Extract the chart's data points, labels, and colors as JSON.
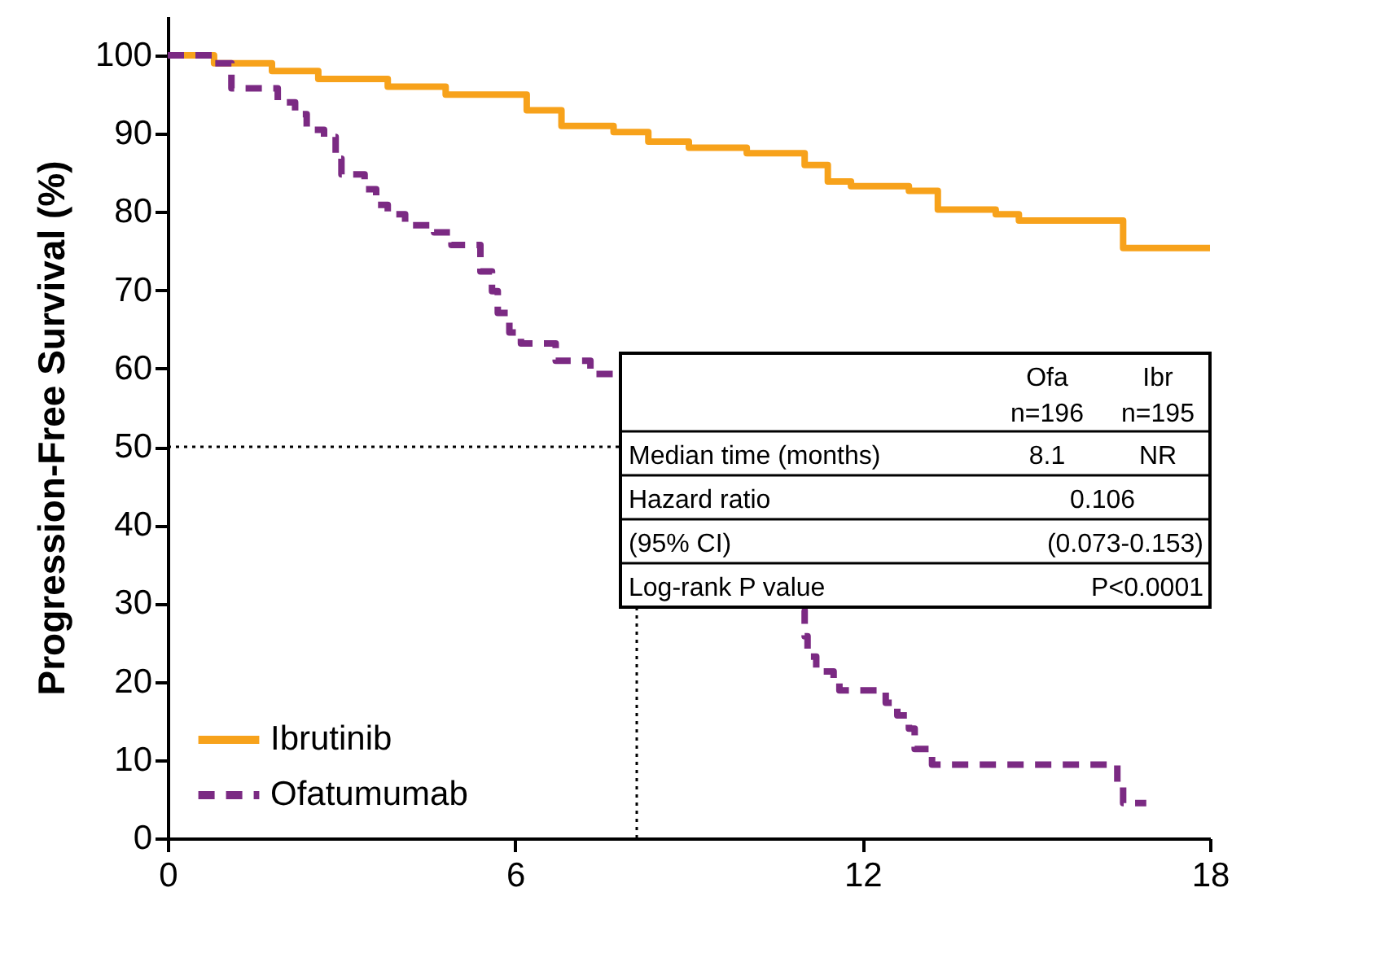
{
  "chart_data": {
    "type": "step",
    "ylabel": "Progression-Free Survival (%)",
    "xlim": [
      0,
      18
    ],
    "ylim": [
      0,
      105
    ],
    "xticks": [
      0,
      6,
      12,
      18
    ],
    "yticks": [
      0,
      10,
      20,
      30,
      40,
      50,
      60,
      70,
      80,
      90,
      100
    ],
    "grid": false,
    "legend": "bottom left",
    "series": [
      {
        "name": "Ibrutinib",
        "color": "#f7a21b",
        "line_style": "solid",
        "x": [
          0,
          0.8,
          1.8,
          2.6,
          3.8,
          4.8,
          6.2,
          6.8,
          7.7,
          8.3,
          9.0,
          10.0,
          11.0,
          11.4,
          11.8,
          12.8,
          13.3,
          14.3,
          14.7,
          16.2,
          16.5,
          18.0
        ],
        "values": [
          100,
          99,
          98,
          97,
          96,
          95,
          93,
          91,
          90.2,
          89,
          88.2,
          87.5,
          86,
          83.9,
          83.3,
          82.7,
          80.3,
          79.7,
          78.9,
          78.9,
          75.4,
          75.4
        ]
      },
      {
        "name": "Ofatumumab",
        "color": "#7b2a83",
        "line_style": "dashed",
        "x": [
          0,
          0.8,
          1.1,
          1.9,
          2.2,
          2.4,
          2.7,
          2.9,
          3.0,
          3.4,
          3.6,
          3.8,
          4.1,
          4.6,
          4.9,
          5.4,
          5.6,
          5.7,
          5.9,
          6.1,
          6.7,
          7.3,
          7.7,
          9.0,
          10.95,
          11.0,
          11.05,
          11.2,
          11.5,
          11.6,
          12.4,
          12.6,
          12.8,
          12.9,
          13.2,
          16.4,
          16.5,
          16.9
        ],
        "values": [
          100,
          99,
          95.8,
          94,
          92.5,
          90.5,
          89.6,
          86.8,
          84.8,
          82.9,
          80.9,
          79.7,
          78.3,
          77.4,
          75.8,
          72.4,
          69.9,
          67.1,
          64.6,
          63.2,
          61,
          59.3,
          58,
          null,
          29.1,
          25.8,
          23.2,
          21.3,
          19.9,
          18.9,
          17.3,
          15.7,
          14,
          11.4,
          9.4,
          6.9,
          4.5,
          4.5
        ]
      }
    ],
    "ref_lines": [
      {
        "axis": "y",
        "value": 50,
        "line_style": "dotted",
        "color": "#000000"
      },
      {
        "axis": "x",
        "value": 8.1,
        "line_style": "dotted",
        "color": "#000000"
      }
    ],
    "annotations": [
      "Ofa",
      "n=196",
      "Ibr",
      "n=195",
      "Median time (months)",
      "8.1",
      "NR",
      "Hazard ratio",
      "0.106",
      "(95% CI)",
      "(0.073-0.153)",
      "Log-rank P value",
      "P<0.0001"
    ]
  }
}
